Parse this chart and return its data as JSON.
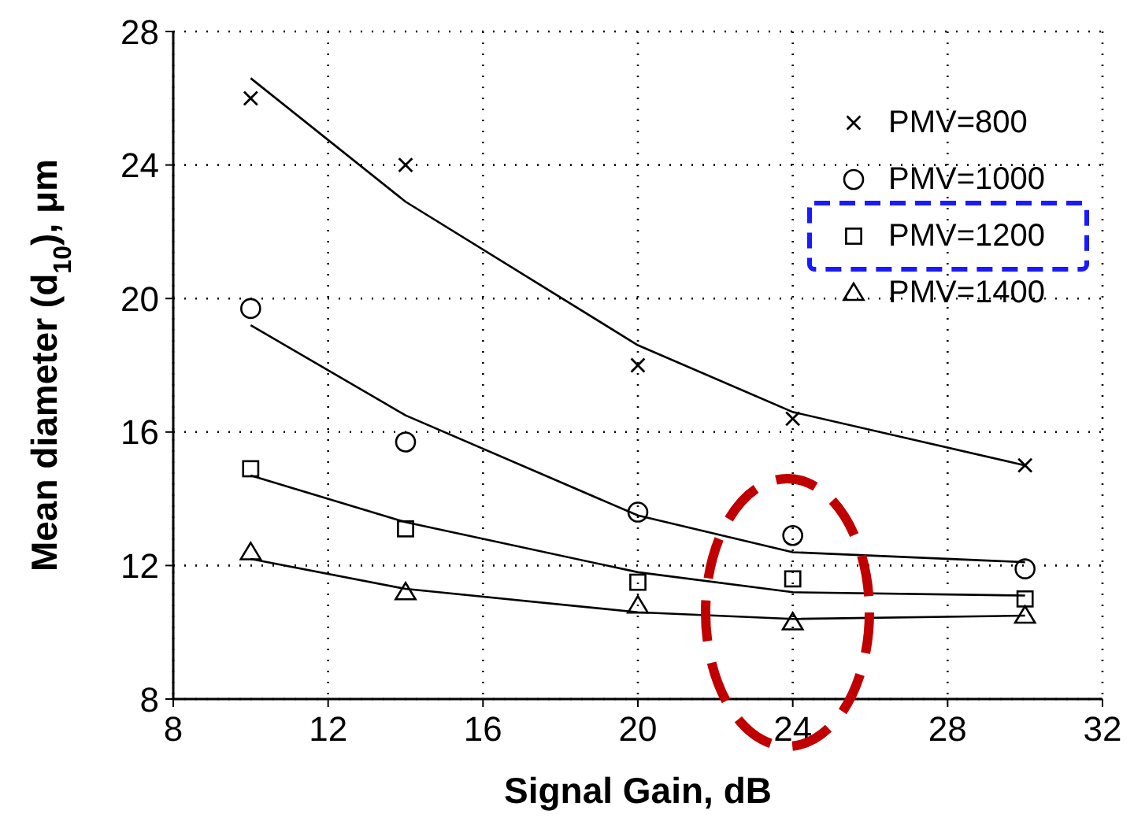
{
  "chart_data": {
    "type": "scatter",
    "xlabel": "Signal Gain, dB",
    "ylabel": "Mean diameter (d$_{10}$), μm",
    "x": [
      10,
      14,
      20,
      24,
      30
    ],
    "xlim": [
      8,
      32
    ],
    "xticks": [
      8,
      12,
      16,
      20,
      24,
      28,
      32
    ],
    "ylim": [
      8,
      28
    ],
    "yticks": [
      8,
      12,
      16,
      20,
      24,
      28
    ],
    "grid": true,
    "legend": "top right",
    "series": [
      {
        "type": "line",
        "color": "#000000",
        "marker": "none",
        "x": [
          10,
          14,
          20,
          24,
          30
        ],
        "values": [
          26.6,
          22.9,
          18.6,
          16.6,
          15.0
        ]
      },
      {
        "type": "line",
        "color": "#000000",
        "marker": "none",
        "x": [
          10,
          14,
          20,
          24,
          30
        ],
        "values": [
          19.2,
          16.5,
          13.5,
          12.4,
          12.1
        ]
      },
      {
        "type": "line",
        "color": "#000000",
        "marker": "none",
        "x": [
          10,
          14,
          20,
          24,
          30
        ],
        "values": [
          14.7,
          13.3,
          11.8,
          11.2,
          11.1
        ]
      },
      {
        "type": "line",
        "color": "#000000",
        "marker": "none",
        "x": [
          10,
          14,
          20,
          24,
          30
        ],
        "values": [
          12.2,
          11.3,
          10.6,
          10.4,
          10.5
        ]
      },
      {
        "name": "PMV=800",
        "color": "#000000",
        "marker": "cross",
        "values": [
          26.0,
          24.0,
          18.0,
          16.4,
          15.0
        ]
      },
      {
        "name": "PMV=1000",
        "color": "#000000",
        "marker": "circle",
        "values": [
          19.7,
          15.7,
          13.6,
          12.9,
          11.9
        ]
      },
      {
        "name": "PMV=1200",
        "color": "#000000",
        "marker": "square",
        "values": [
          14.9,
          13.1,
          11.5,
          11.6,
          11.0
        ]
      },
      {
        "name": "PMV=1400",
        "color": "#000000",
        "marker": "triangle",
        "values": [
          12.4,
          11.2,
          10.8,
          10.3,
          10.5
        ]
      }
    ]
  }
}
